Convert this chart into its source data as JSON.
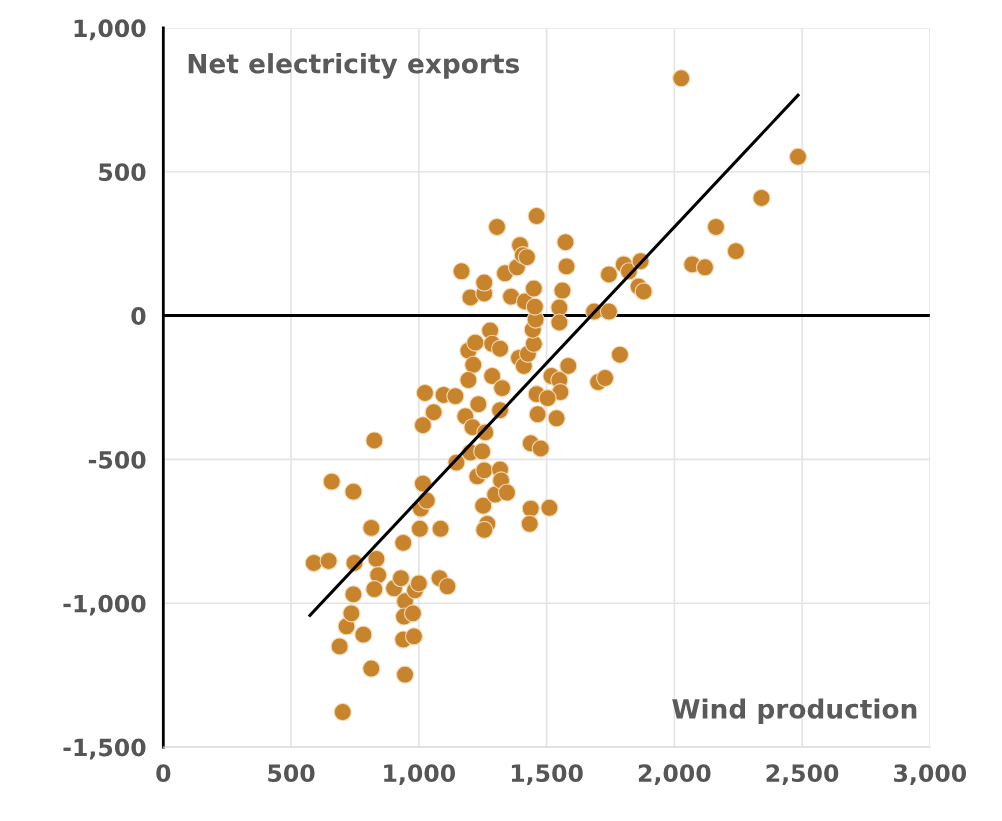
{
  "chart_data": {
    "type": "scatter",
    "xlabel": "Wind production",
    "ylabel": "Net electricity exports",
    "xlim": [
      0,
      3000
    ],
    "ylim": [
      -1500,
      1000
    ],
    "xticks": [
      0,
      500,
      {
        "value": 1000,
        "label": "1,000"
      },
      {
        "value": 1500,
        "label": "1,500"
      },
      {
        "value": 2000,
        "label": "2,000"
      },
      {
        "value": 2500,
        "label": "2,500"
      },
      {
        "value": 3000,
        "label": "3,000"
      }
    ],
    "yticks": [
      {
        "value": -1500,
        "label": "-1,500"
      },
      {
        "value": -1000,
        "label": "-1,000"
      },
      {
        "value": -500,
        "label": "-500"
      },
      0,
      500,
      {
        "value": 1000,
        "label": "1,000"
      }
    ],
    "grid": true,
    "ref_lines": [
      {
        "axis": "y",
        "value": 0,
        "color": "#000000"
      }
    ],
    "series": [
      {
        "marker": "circle",
        "color": "#c8842c",
        "x": [
          589,
          647,
          659,
          744,
          748,
          744,
          690,
          717,
          736,
          783,
          814,
          826,
          834,
          841,
          826,
          814,
          702,
          903,
          930,
          946,
          942,
          939,
          946,
          939,
          985,
          977,
          981,
          1000,
          1004,
          1008,
          1016,
          1024,
          1016,
          1058,
          1031,
          1085,
          1081,
          1112,
          1097,
          1143,
          1147,
          1182,
          1167,
          1202,
          1194,
          1221,
          1213,
          1194,
          1233,
          1210,
          1202,
          1229,
          1256,
          1248,
          1260,
          1252,
          1268,
          1256,
          1256,
          1256,
          1306,
          1279,
          1287,
          1318,
          1287,
          1326,
          1318,
          1299,
          1318,
          1322,
          1345,
          1337,
          1361,
          1384,
          1396,
          1407,
          1423,
          1415,
          1392,
          1411,
          1427,
          1450,
          1446,
          1457,
          1454,
          1450,
          1461,
          1461,
          1465,
          1438,
          1477,
          1438,
          1434,
          1550,
          1550,
          1562,
          1574,
          1578,
          1519,
          1550,
          1554,
          1539,
          1511,
          1504,
          1585,
          1702,
          1729,
          1787,
          1686,
          1744,
          1744,
          1802,
          1822,
          1868,
          1860,
          1880,
          2027,
          2070,
          2120,
          2163,
          2241,
          2341,
          2484
        ],
        "values": [
          -860,
          -853,
          -577,
          -612,
          -860,
          -969,
          -1150,
          -1080,
          -1035,
          -1109,
          -738,
          -434,
          -846,
          -902,
          -951,
          -1227,
          -1378,
          -948,
          -913,
          -993,
          -1046,
          -1126,
          -1248,
          -790,
          -955,
          -1035,
          -1115,
          -931,
          -741,
          -671,
          -584,
          -269,
          -381,
          -336,
          -643,
          -741,
          -913,
          -941,
          -276,
          -280,
          -511,
          -350,
          154,
          63,
          -122,
          -94,
          -171,
          -224,
          -308,
          -388,
          -476,
          -559,
          -538,
          -472,
          -406,
          -661,
          -724,
          -745,
          77,
          115,
          308,
          -52,
          -98,
          -115,
          -210,
          -252,
          -329,
          -622,
          -535,
          -573,
          -615,
          147,
          66,
          168,
          245,
          210,
          203,
          49,
          -147,
          -175,
          -133,
          -98,
          -49,
          -14,
          31,
          94,
          346,
          -273,
          -343,
          -444,
          -462,
          -671,
          -724,
          28,
          -24,
          87,
          255,
          171,
          -210,
          -224,
          -266,
          -357,
          -668,
          -287,
          -175,
          -231,
          -217,
          -136,
          14,
          14,
          143,
          178,
          154,
          189,
          101,
          84,
          825,
          178,
          168,
          308,
          224,
          409,
          552
        ]
      },
      {
        "type": "line",
        "color": "#000000",
        "x": [
          574,
          2484
        ],
        "values": [
          -1042,
          766
        ]
      }
    ]
  }
}
